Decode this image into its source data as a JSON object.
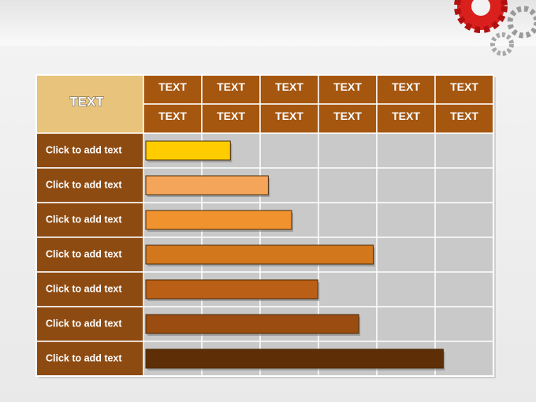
{
  "chart_data": {
    "type": "bar",
    "orientation": "horizontal",
    "corner": "TEXT",
    "column_headers": [
      [
        "TEXT",
        "TEXT",
        "TEXT",
        "TEXT",
        "TEXT",
        "TEXT"
      ],
      [
        "TEXT",
        "TEXT",
        "TEXT",
        "TEXT",
        "TEXT",
        "TEXT"
      ]
    ],
    "categories": [
      "Click to add text",
      "Click to add text",
      "Click to add text",
      "Click to add text",
      "Click to add text",
      "Click to add text",
      "Click to add text"
    ],
    "values": [
      1.45,
      2.1,
      2.5,
      3.9,
      2.95,
      3.65,
      5.1
    ],
    "colors": [
      "#ffcc00",
      "#f4a55a",
      "#f0922e",
      "#d2771c",
      "#b95f16",
      "#9b4c10",
      "#5e2e06"
    ],
    "xlim": [
      0,
      6
    ]
  }
}
